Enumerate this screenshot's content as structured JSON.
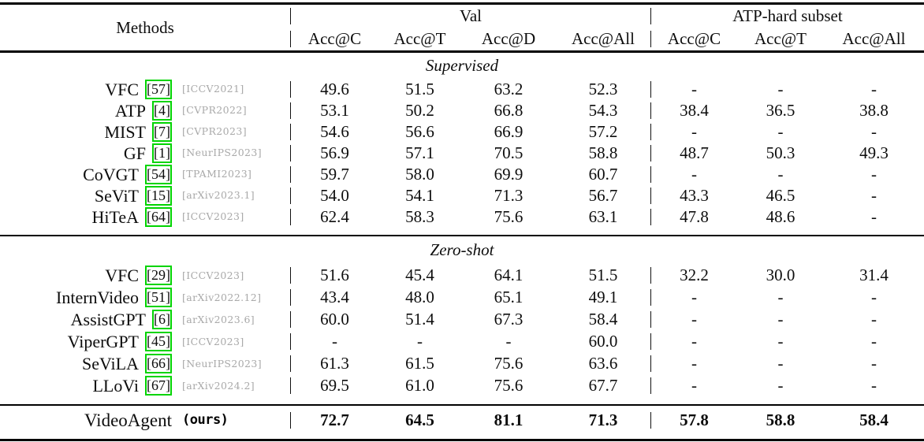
{
  "table": {
    "header": {
      "methods_label": "Methods",
      "group_val": "Val",
      "group_atp": "ATP-hard subset",
      "val_cols": [
        "Acc@C",
        "Acc@T",
        "Acc@D",
        "Acc@All"
      ],
      "atp_cols": [
        "Acc@C",
        "Acc@T",
        "Acc@All"
      ]
    },
    "sections": [
      {
        "title": "Supervised",
        "rows": [
          {
            "method": "VFC",
            "cite": "[57]",
            "venue": "[ICCV2021]",
            "vals": [
              "49.6",
              "51.5",
              "63.2",
              "52.3"
            ],
            "atp": [
              "-",
              "-",
              "-"
            ]
          },
          {
            "method": "ATP",
            "cite": "[4]",
            "venue": "[CVPR2022]",
            "vals": [
              "53.1",
              "50.2",
              "66.8",
              "54.3"
            ],
            "atp": [
              "38.4",
              "36.5",
              "38.8"
            ]
          },
          {
            "method": "MIST",
            "cite": "[7]",
            "venue": "[CVPR2023]",
            "vals": [
              "54.6",
              "56.6",
              "66.9",
              "57.2"
            ],
            "atp": [
              "-",
              "-",
              "-"
            ]
          },
          {
            "method": "GF",
            "cite": "[1]",
            "venue": "[NeurIPS2023]",
            "vals": [
              "56.9",
              "57.1",
              "70.5",
              "58.8"
            ],
            "atp": [
              "48.7",
              "50.3",
              "49.3"
            ]
          },
          {
            "method": "CoVGT",
            "cite": "[54]",
            "venue": "[TPAMI2023]",
            "vals": [
              "59.7",
              "58.0",
              "69.9",
              "60.7"
            ],
            "atp": [
              "-",
              "-",
              "-"
            ]
          },
          {
            "method": "SeViT",
            "cite": "[15]",
            "venue": "[arXiv2023.1]",
            "vals": [
              "54.0",
              "54.1",
              "71.3",
              "56.7"
            ],
            "atp": [
              "43.3",
              "46.5",
              "-"
            ]
          },
          {
            "method": "HiTeA",
            "cite": "[64]",
            "venue": "[ICCV2023]",
            "vals": [
              "62.4",
              "58.3",
              "75.6",
              "63.1"
            ],
            "atp": [
              "47.8",
              "48.6",
              "-"
            ]
          }
        ]
      },
      {
        "title": "Zero-shot",
        "rows": [
          {
            "method": "VFC",
            "cite": "[29]",
            "venue": "[ICCV2023]",
            "vals": [
              "51.6",
              "45.4",
              "64.1",
              "51.5"
            ],
            "atp": [
              "32.2",
              "30.0",
              "31.4"
            ]
          },
          {
            "method": "InternVideo",
            "cite": "[51]",
            "venue": "[arXiv2022.12]",
            "vals": [
              "43.4",
              "48.0",
              "65.1",
              "49.1"
            ],
            "atp": [
              "-",
              "-",
              "-"
            ]
          },
          {
            "method": "AssistGPT",
            "cite": "[6]",
            "venue": "[arXiv2023.6]",
            "vals": [
              "60.0",
              "51.4",
              "67.3",
              "58.4"
            ],
            "atp": [
              "-",
              "-",
              "-"
            ]
          },
          {
            "method": "ViperGPT",
            "cite": "[45]",
            "venue": "[ICCV2023]",
            "vals": [
              "-",
              "-",
              "-",
              "60.0"
            ],
            "atp": [
              "-",
              "-",
              "-"
            ]
          },
          {
            "method": "SeViLA",
            "cite": "[66]",
            "venue": "[NeurIPS2023]",
            "vals": [
              "61.3",
              "61.5",
              "75.6",
              "63.6"
            ],
            "atp": [
              "-",
              "-",
              "-"
            ]
          },
          {
            "method": "LLoVi",
            "cite": "[67]",
            "venue": "[arXiv2024.2]",
            "vals": [
              "69.5",
              "61.0",
              "75.6",
              "67.7"
            ],
            "atp": [
              "-",
              "-",
              "-"
            ]
          }
        ]
      }
    ],
    "final_row": {
      "method": "VideoAgent",
      "note": "(ours)",
      "vals": [
        "72.7",
        "64.5",
        "81.1",
        "71.3"
      ],
      "atp": [
        "57.8",
        "58.8",
        "58.4"
      ]
    },
    "colors": {
      "cite_link_box": "#00d400",
      "venue_text": "#a9a9a9",
      "rule": "#000000"
    }
  }
}
